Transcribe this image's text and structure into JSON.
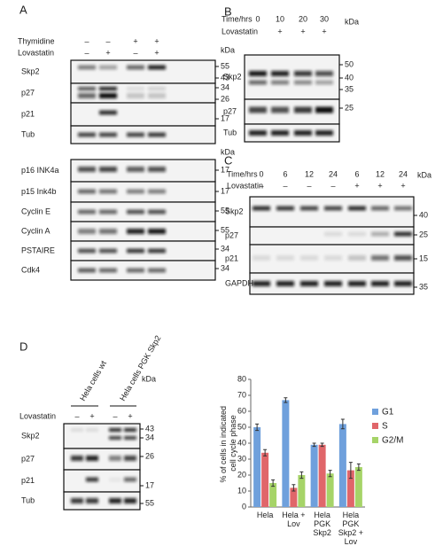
{
  "panel_a": {
    "letter": "A",
    "conditions": [
      {
        "name": "Thymidine",
        "signs": [
          "–",
          "–",
          "+",
          "+"
        ]
      },
      {
        "name": "Lovastatin",
        "signs": [
          "–",
          "+",
          "–",
          "+"
        ]
      }
    ],
    "unit": "kDa",
    "blots": [
      {
        "label": "Skp2",
        "markers": [
          55,
          43
        ]
      },
      {
        "label": "p27",
        "markers": [
          34,
          26
        ]
      },
      {
        "label": "p21",
        "markers": [
          17
        ]
      },
      {
        "label": "Tub",
        "markers": []
      }
    ],
    "unit2": "kDa",
    "blots2": [
      {
        "label": "p16 INK4a",
        "markers": [
          17
        ]
      },
      {
        "label": "p15 Ink4b",
        "markers": [
          17
        ]
      },
      {
        "label": "Cyclin E",
        "markers": [
          55
        ]
      },
      {
        "label": "Cyclin A",
        "markers": [
          55
        ]
      },
      {
        "label": "PSTAIRE",
        "markers": [
          34
        ]
      },
      {
        "label": "Cdk4",
        "markers": [
          34
        ]
      }
    ]
  },
  "panel_b": {
    "letter": "B",
    "conditions": [
      {
        "name": "Time/hrs",
        "signs": [
          "0",
          "10",
          "20",
          "30"
        ]
      },
      {
        "name": "Lovastatin",
        "signs": [
          "",
          "+",
          "+",
          "+"
        ]
      }
    ],
    "unit": "kDa",
    "blots": [
      {
        "label": "Skp2",
        "markers": [
          50,
          40,
          35
        ]
      },
      {
        "label": "p27",
        "markers": [
          25
        ]
      },
      {
        "label": "Tub",
        "markers": []
      }
    ]
  },
  "panel_c": {
    "letter": "C",
    "conditions": [
      {
        "name": "Time/hrs",
        "signs": [
          "0",
          "6",
          "12",
          "24",
          "6",
          "12",
          "24"
        ]
      },
      {
        "name": "Lovastatin",
        "signs": [
          "–",
          "–",
          "–",
          "–",
          "+",
          "+",
          "+"
        ]
      }
    ],
    "unit": "kDa",
    "blots": [
      {
        "label": "Skp2",
        "markers": [
          40
        ]
      },
      {
        "label": "p27",
        "markers": [
          25
        ]
      },
      {
        "label": "p21",
        "markers": [
          15
        ]
      },
      {
        "label": "GAPDH",
        "markers": [
          35
        ]
      }
    ]
  },
  "panel_d": {
    "letter": "D",
    "groups": [
      "Hela cells wt",
      "Hela cells PGK Skp2"
    ],
    "conditions": [
      {
        "name": "Lovastatin",
        "signs": [
          "–",
          "+",
          "–",
          "+"
        ]
      }
    ],
    "unit": "kDa",
    "blots": [
      {
        "label": "Skp2",
        "markers": [
          43,
          34
        ]
      },
      {
        "label": "p27",
        "markers": [
          26
        ]
      },
      {
        "label": "p21",
        "markers": [
          17
        ]
      },
      {
        "label": "Tub",
        "markers": [
          55
        ]
      }
    ]
  },
  "chart_data": {
    "type": "bar",
    "y_label": "% of cells in indicated cell cycle phase",
    "categories": [
      "Hela",
      "Hela + Lov",
      "Hela PGK Skp2",
      "Hela PGK Skp2 + Lov"
    ],
    "series": [
      {
        "name": "G1",
        "color": "#6fa0dc",
        "values": [
          50,
          67,
          39,
          52
        ],
        "errors": [
          2,
          1.5,
          1,
          3
        ]
      },
      {
        "name": "S",
        "color": "#e0666a",
        "values": [
          34,
          12,
          39,
          23
        ],
        "errors": [
          2,
          2,
          1,
          5
        ]
      },
      {
        "name": "G2/M",
        "color": "#a6d468",
        "values": [
          15,
          20,
          21,
          25
        ],
        "errors": [
          2,
          2,
          2,
          2
        ]
      }
    ],
    "ylim": [
      0,
      80
    ],
    "yticks": [
      0,
      10,
      20,
      30,
      40,
      50,
      60,
      70,
      80
    ],
    "legend": "right"
  }
}
